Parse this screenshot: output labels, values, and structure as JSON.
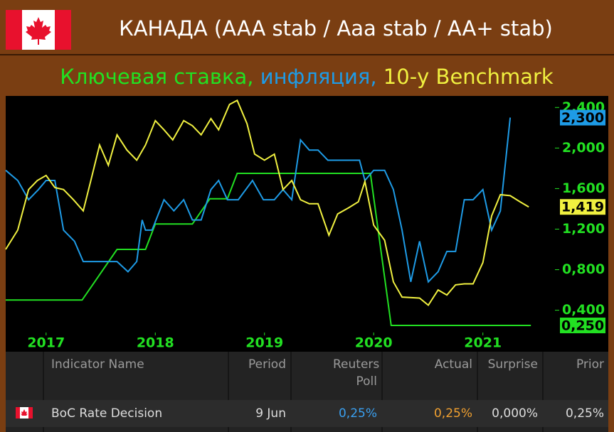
{
  "header": {
    "title": "КАНАДА (AAA stab / Aaa stab / AA+ stab)",
    "subtitle": [
      {
        "text": "Ключевая ставка,",
        "color": "#22e022"
      },
      {
        "text": "инфляция,",
        "color": "#1e9be6"
      },
      {
        "text": "10-y Benchmark",
        "color": "#f0f040"
      }
    ]
  },
  "chart_data": {
    "type": "line",
    "xlim": [
      2016.63,
      2021.66
    ],
    "xticks": [
      2017,
      2018,
      2019,
      2020,
      2021
    ],
    "ylim": [
      0.18,
      2.5
    ],
    "yticks": [
      {
        "value": 0.4,
        "label": "0,400"
      },
      {
        "value": 0.8,
        "label": "0,800"
      },
      {
        "value": 1.2,
        "label": "1,200"
      },
      {
        "value": 1.6,
        "label": "1,600"
      },
      {
        "value": 2.0,
        "label": "2,000"
      },
      {
        "value": 2.4,
        "label": "2,400"
      }
    ],
    "tick_color": "#22e022",
    "series": [
      {
        "color": "#22e022",
        "x": [
          2016.63,
          2017.33,
          2017.65,
          2017.91,
          2018.0,
          2018.34,
          2018.5,
          2018.66,
          2018.75,
          2019.97,
          2020.16,
          2021.44
        ],
        "values": [
          0.5,
          0.5,
          1.0,
          1.0,
          1.25,
          1.25,
          1.5,
          1.5,
          1.75,
          1.75,
          0.25,
          0.25
        ],
        "end_label": "0,250"
      },
      {
        "color": "#1e9be6",
        "x": [
          2016.63,
          2016.74,
          2016.84,
          2016.93,
          2017.0,
          2017.08,
          2017.16,
          2017.26,
          2017.34,
          2017.46,
          2017.59,
          2017.65,
          2017.75,
          2017.83,
          2017.88,
          2017.91,
          2017.97,
          2018.08,
          2018.17,
          2018.26,
          2018.34,
          2018.42,
          2018.51,
          2018.58,
          2018.66,
          2018.76,
          2018.89,
          2018.99,
          2019.09,
          2019.17,
          2019.25,
          2019.33,
          2019.41,
          2019.49,
          2019.58,
          2019.77,
          2019.87,
          2019.92,
          2020.0,
          2020.1,
          2020.18,
          2020.26,
          2020.34,
          2020.42,
          2020.5,
          2020.59,
          2020.67,
          2020.75,
          2020.83,
          2020.91,
          2021.0,
          2021.08,
          2021.16,
          2021.25
        ],
        "values": [
          1.78,
          1.68,
          1.49,
          1.59,
          1.68,
          1.68,
          1.19,
          1.08,
          0.88,
          0.88,
          0.88,
          0.88,
          0.78,
          0.88,
          1.29,
          1.19,
          1.19,
          1.49,
          1.38,
          1.49,
          1.29,
          1.29,
          1.59,
          1.68,
          1.49,
          1.49,
          1.68,
          1.49,
          1.49,
          1.59,
          1.49,
          2.08,
          1.98,
          1.98,
          1.88,
          1.88,
          1.88,
          1.68,
          1.78,
          1.78,
          1.59,
          1.19,
          0.68,
          1.08,
          0.68,
          0.78,
          0.98,
          0.98,
          1.49,
          1.49,
          1.59,
          1.19,
          1.38,
          2.3
        ],
        "end_label": "2,300"
      },
      {
        "color": "#f0f040",
        "x": [
          2016.63,
          2016.74,
          2016.84,
          2016.92,
          2017.0,
          2017.08,
          2017.16,
          2017.25,
          2017.34,
          2017.41,
          2017.49,
          2017.57,
          2017.65,
          2017.74,
          2017.83,
          2017.91,
          2018.0,
          2018.08,
          2018.16,
          2018.26,
          2018.34,
          2018.42,
          2018.51,
          2018.58,
          2018.68,
          2018.75,
          2018.84,
          2018.91,
          2019.0,
          2019.09,
          2019.17,
          2019.25,
          2019.33,
          2019.41,
          2019.49,
          2019.59,
          2019.67,
          2019.77,
          2019.86,
          2019.92,
          2020.0,
          2020.1,
          2020.18,
          2020.26,
          2020.42,
          2020.5,
          2020.59,
          2020.67,
          2020.75,
          2020.83,
          2020.91,
          2021.0,
          2021.08,
          2021.16,
          2021.25,
          2021.34,
          2021.42
        ],
        "values": [
          1.0,
          1.19,
          1.59,
          1.68,
          1.73,
          1.61,
          1.59,
          1.49,
          1.38,
          1.68,
          2.03,
          1.83,
          2.13,
          1.98,
          1.88,
          2.03,
          2.27,
          2.18,
          2.08,
          2.27,
          2.22,
          2.13,
          2.29,
          2.18,
          2.43,
          2.47,
          2.24,
          1.94,
          1.88,
          1.94,
          1.59,
          1.68,
          1.49,
          1.45,
          1.45,
          1.14,
          1.35,
          1.41,
          1.47,
          1.67,
          1.24,
          1.09,
          0.68,
          0.53,
          0.52,
          0.45,
          0.6,
          0.55,
          0.65,
          0.66,
          0.66,
          0.87,
          1.33,
          1.54,
          1.53,
          1.47,
          1.419
        ],
        "end_label": "1,419"
      }
    ]
  },
  "table": {
    "columns": [
      "Indicator Name",
      "Period",
      "Reuters Poll",
      "Actual",
      "Surprise",
      "Prior"
    ],
    "rows": [
      [
        {
          "text": "BoC Rate Decision",
          "color": "#dddddd"
        },
        {
          "text": "9 Jun",
          "color": "#dddddd"
        },
        {
          "text": "0,25%",
          "color": "#3aa0f0"
        },
        {
          "text": "0,25%",
          "color": "#f0a030"
        },
        {
          "text": "0,000%",
          "color": "#dddddd"
        },
        {
          "text": "0,25%",
          "color": "#dddddd"
        }
      ]
    ]
  }
}
